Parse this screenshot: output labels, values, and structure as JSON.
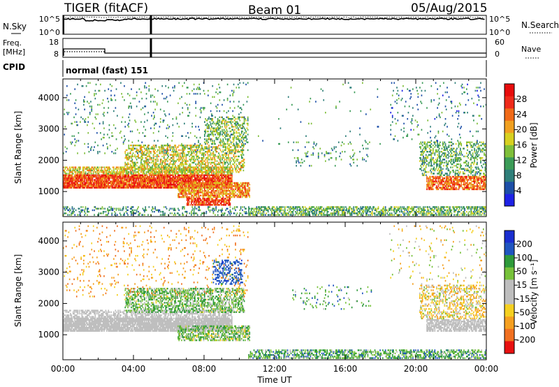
{
  "header": {
    "radar": "TIGER (fitACF)",
    "beam": "Beam 01",
    "date": "05/Aug/2015"
  },
  "top_panels": {
    "nsky_label": "N.Sky",
    "nsky_ticks": [
      "10^5",
      "10^0"
    ],
    "nsearch_label": "N.Search",
    "nsearch_ticks": [
      "10^5",
      "10^0"
    ],
    "freq_label": "Freq.",
    "freq_unit": "[MHz]",
    "freq_ticks": [
      "18",
      "8"
    ],
    "nave_label": "Nave",
    "nave_ticks": [
      "60",
      "0"
    ],
    "cpid_label": "CPID",
    "cpid_value": "normal (fast) 151"
  },
  "colors": {
    "power_scale": [
      "#1e22e6",
      "#1d4fa8",
      "#2f7f7a",
      "#3c9c58",
      "#7fbf3a",
      "#d7d020",
      "#f0a020",
      "#f06a18",
      "#ef2a1a",
      "#e80c0c"
    ],
    "velocity_scale": [
      "#1a2ed0",
      "#1f55c0",
      "#2e9a3a",
      "#77c23a",
      "#bebebe",
      "#bebebe",
      "#f5d020",
      "#f5a020",
      "#f07020",
      "#e81010"
    ]
  },
  "chart_data": [
    {
      "type": "heatmap",
      "name": "power",
      "ylabel": "Slant Range [km]",
      "ylim": [
        200,
        4600
      ],
      "yticks": [
        "1000",
        "2000",
        "3000",
        "4000"
      ],
      "xlim": [
        0,
        24
      ],
      "colorbar": {
        "label": "Power [dB]",
        "range": [
          0,
          32
        ],
        "ticks": [
          "4",
          "8",
          "12",
          "16",
          "20",
          "24",
          "28"
        ]
      },
      "regions": [
        {
          "t0": 0.0,
          "t1": 9.6,
          "r0": 1100,
          "r1": 1550,
          "v": 26,
          "d": 0.9
        },
        {
          "t0": 0.0,
          "t1": 9.6,
          "r0": 1550,
          "r1": 1800,
          "v": 18,
          "d": 0.6
        },
        {
          "t0": 3.5,
          "t1": 10.3,
          "r0": 1600,
          "r1": 2500,
          "v": 17,
          "d": 0.45
        },
        {
          "t0": 6.5,
          "t1": 10.6,
          "r0": 800,
          "r1": 1300,
          "v": 22,
          "d": 0.7
        },
        {
          "t0": 7.0,
          "t1": 9.5,
          "r0": 550,
          "r1": 800,
          "v": 27,
          "d": 0.75
        },
        {
          "t0": 8.0,
          "t1": 10.5,
          "r0": 2500,
          "r1": 3400,
          "v": 14,
          "d": 0.35
        },
        {
          "t0": 0.0,
          "t1": 10.5,
          "r0": 2200,
          "r1": 4500,
          "v": 10,
          "d": 0.05
        },
        {
          "t0": 10.5,
          "t1": 24.0,
          "r0": 230,
          "r1": 500,
          "v": 12,
          "d": 0.55
        },
        {
          "t0": 0.0,
          "t1": 10.5,
          "r0": 230,
          "r1": 500,
          "v": 10,
          "d": 0.25
        },
        {
          "t0": 20.6,
          "t1": 24.0,
          "r0": 1050,
          "r1": 1500,
          "v": 24,
          "d": 0.7
        },
        {
          "t0": 20.2,
          "t1": 24.0,
          "r0": 1500,
          "r1": 2600,
          "v": 12,
          "d": 0.35
        },
        {
          "t0": 18.5,
          "t1": 24.0,
          "r0": 2600,
          "r1": 4500,
          "v": 8,
          "d": 0.04
        },
        {
          "t0": 13.0,
          "t1": 17.5,
          "r0": 1800,
          "r1": 2600,
          "v": 10,
          "d": 0.06
        },
        {
          "t0": 11.0,
          "t1": 18.0,
          "r0": 2500,
          "r1": 4500,
          "v": 10,
          "d": 0.01
        }
      ]
    },
    {
      "type": "heatmap",
      "name": "velocity",
      "ylabel": "Slant Range [km]",
      "xlabel": "Time UT",
      "ylim": [
        200,
        4600
      ],
      "yticks": [
        "1000",
        "2000",
        "3000",
        "4000"
      ],
      "xlim": [
        0,
        24
      ],
      "xticks": [
        "00:00",
        "04:00",
        "08:00",
        "12:00",
        "16:00",
        "20:00",
        "00:00"
      ],
      "colorbar": {
        "label": "Velocity [m s⁻¹]",
        "ticks": [
          "200",
          "100",
          "50",
          "15",
          "-15",
          "-50",
          "-100",
          "-200"
        ]
      },
      "regions": [
        {
          "t0": 0.0,
          "t1": 9.6,
          "r0": 1100,
          "r1": 1550,
          "v": 0,
          "d": 0.9
        },
        {
          "t0": 0.0,
          "t1": 9.6,
          "r0": 1550,
          "r1": 1800,
          "v": 0,
          "d": 0.5
        },
        {
          "t0": 3.5,
          "t1": 10.3,
          "r0": 1700,
          "r1": 2500,
          "v": 40,
          "d": 0.5
        },
        {
          "t0": 6.5,
          "t1": 10.6,
          "r0": 800,
          "r1": 1300,
          "v": 30,
          "d": 0.6
        },
        {
          "t0": 8.5,
          "t1": 10.2,
          "r0": 2600,
          "r1": 3400,
          "v": 150,
          "d": 0.35
        },
        {
          "t0": 0.0,
          "t1": 10.5,
          "r0": 2200,
          "r1": 4500,
          "v": -80,
          "d": 0.05
        },
        {
          "t0": 10.5,
          "t1": 24.0,
          "r0": 230,
          "r1": 500,
          "v": 60,
          "d": 0.5
        },
        {
          "t0": 20.6,
          "t1": 24.0,
          "r0": 1100,
          "r1": 1500,
          "v": 0,
          "d": 0.7
        },
        {
          "t0": 20.2,
          "t1": 24.0,
          "r0": 1500,
          "r1": 2600,
          "v": -30,
          "d": 0.35
        },
        {
          "t0": 18.5,
          "t1": 24.0,
          "r0": 2600,
          "r1": 4500,
          "v": -20,
          "d": 0.04
        },
        {
          "t0": 13.0,
          "t1": 17.5,
          "r0": 1800,
          "r1": 2600,
          "v": 60,
          "d": 0.06
        }
      ]
    }
  ]
}
